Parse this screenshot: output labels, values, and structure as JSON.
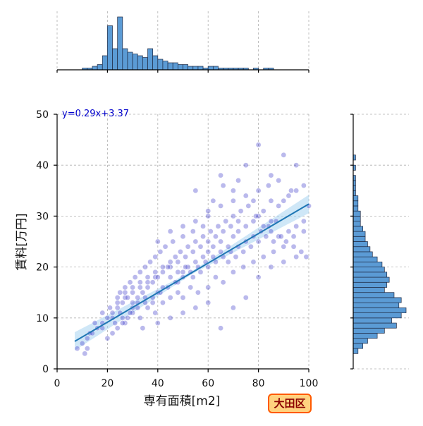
{
  "chart_data": {
    "type": "scatter",
    "xlabel": "専有面積[m2]",
    "ylabel": "賃料[万円]",
    "xlim": [
      0,
      100
    ],
    "ylim": [
      0,
      50
    ],
    "xticks": [
      0,
      20,
      40,
      60,
      80,
      100
    ],
    "yticks": [
      0,
      10,
      20,
      30,
      40,
      50
    ],
    "grid": true,
    "regression": {
      "label": "y=0.29x+3.37",
      "slope": 0.29,
      "intercept": 3.37,
      "x_range": [
        7,
        100
      ],
      "ci_end_halfwidth": 1.5
    },
    "points": [
      [
        13,
        7
      ],
      [
        18,
        8
      ],
      [
        22,
        10
      ],
      [
        25,
        11
      ],
      [
        27,
        9
      ],
      [
        30,
        12
      ],
      [
        32,
        13
      ],
      [
        35,
        14
      ],
      [
        38,
        13
      ],
      [
        40,
        15
      ],
      [
        42,
        16
      ],
      [
        45,
        18
      ],
      [
        48,
        17
      ],
      [
        50,
        19
      ],
      [
        52,
        20
      ],
      [
        55,
        21
      ],
      [
        58,
        22
      ],
      [
        60,
        23
      ],
      [
        62,
        24
      ],
      [
        65,
        25
      ],
      [
        68,
        24
      ],
      [
        70,
        26
      ],
      [
        72,
        27
      ],
      [
        75,
        28
      ],
      [
        78,
        29
      ],
      [
        80,
        30
      ],
      [
        82,
        31
      ],
      [
        85,
        29
      ],
      [
        88,
        32
      ],
      [
        90,
        33
      ],
      [
        92,
        34
      ],
      [
        95,
        35
      ],
      [
        98,
        36
      ],
      [
        100,
        32
      ],
      [
        60,
        30
      ],
      [
        65,
        38
      ],
      [
        70,
        35
      ],
      [
        75,
        40
      ],
      [
        80,
        44
      ],
      [
        85,
        38
      ],
      [
        90,
        42
      ],
      [
        95,
        40
      ],
      [
        55,
        35
      ],
      [
        62,
        33
      ],
      [
        66,
        36
      ],
      [
        72,
        37
      ],
      [
        78,
        33
      ],
      [
        84,
        36
      ],
      [
        88,
        37
      ],
      [
        93,
        35
      ],
      [
        20,
        6
      ],
      [
        22,
        7
      ],
      [
        24,
        8
      ],
      [
        26,
        9
      ],
      [
        28,
        10
      ],
      [
        30,
        11
      ],
      [
        33,
        10
      ],
      [
        36,
        12
      ],
      [
        39,
        11
      ],
      [
        42,
        13
      ],
      [
        45,
        14
      ],
      [
        48,
        15
      ],
      [
        50,
        14
      ],
      [
        53,
        16
      ],
      [
        56,
        15
      ],
      [
        60,
        16
      ],
      [
        63,
        18
      ],
      [
        66,
        17
      ],
      [
        70,
        19
      ],
      [
        74,
        20
      ],
      [
        78,
        21
      ],
      [
        82,
        22
      ],
      [
        86,
        23
      ],
      [
        90,
        24
      ],
      [
        94,
        26
      ],
      [
        98,
        27
      ],
      [
        15,
        9
      ],
      [
        18,
        11
      ],
      [
        21,
        12
      ],
      [
        24,
        13
      ],
      [
        27,
        14
      ],
      [
        30,
        15
      ],
      [
        33,
        16
      ],
      [
        36,
        17
      ],
      [
        39,
        18
      ],
      [
        42,
        19
      ],
      [
        45,
        20
      ],
      [
        48,
        21
      ],
      [
        51,
        22
      ],
      [
        54,
        23
      ],
      [
        57,
        24
      ],
      [
        60,
        25
      ],
      [
        63,
        26
      ],
      [
        66,
        27
      ],
      [
        69,
        28
      ],
      [
        72,
        29
      ],
      [
        10,
        5
      ],
      [
        12,
        6
      ],
      [
        14,
        7
      ],
      [
        16,
        8
      ],
      [
        18,
        9
      ],
      [
        20,
        10
      ],
      [
        22,
        11
      ],
      [
        24,
        12
      ],
      [
        26,
        13
      ],
      [
        28,
        14
      ],
      [
        30,
        13
      ],
      [
        32,
        14
      ],
      [
        34,
        15
      ],
      [
        36,
        16
      ],
      [
        38,
        17
      ],
      [
        40,
        18
      ],
      [
        44,
        20
      ],
      [
        47,
        22
      ],
      [
        49,
        23
      ],
      [
        52,
        24
      ],
      [
        55,
        25
      ],
      [
        58,
        26
      ],
      [
        61,
        27
      ],
      [
        64,
        28
      ],
      [
        67,
        29
      ],
      [
        70,
        30
      ],
      [
        73,
        31
      ],
      [
        76,
        32
      ],
      [
        79,
        30
      ],
      [
        82,
        28
      ],
      [
        85,
        27
      ],
      [
        88,
        26
      ],
      [
        91,
        25
      ],
      [
        94,
        24
      ],
      [
        97,
        23
      ],
      [
        99,
        22
      ],
      [
        25,
        15
      ],
      [
        27,
        16
      ],
      [
        29,
        17
      ],
      [
        31,
        18
      ],
      [
        33,
        19
      ],
      [
        35,
        20
      ],
      [
        37,
        21
      ],
      [
        39,
        22
      ],
      [
        41,
        23
      ],
      [
        43,
        24
      ],
      [
        46,
        25
      ],
      [
        50,
        26
      ],
      [
        54,
        27
      ],
      [
        58,
        28
      ],
      [
        8,
        4
      ],
      [
        11,
        3
      ],
      [
        12,
        4
      ],
      [
        34,
        8
      ],
      [
        40,
        9
      ],
      [
        45,
        10
      ],
      [
        50,
        11
      ],
      [
        55,
        12
      ],
      [
        60,
        13
      ],
      [
        65,
        8
      ],
      [
        70,
        12
      ],
      [
        75,
        14
      ],
      [
        80,
        18
      ],
      [
        85,
        20
      ],
      [
        90,
        21
      ],
      [
        95,
        22
      ],
      [
        23,
        9
      ],
      [
        26,
        10
      ],
      [
        29,
        11
      ],
      [
        32,
        12
      ],
      [
        35,
        13
      ],
      [
        38,
        14
      ],
      [
        41,
        15
      ],
      [
        44,
        16
      ],
      [
        47,
        17
      ],
      [
        50,
        18
      ],
      [
        53,
        19
      ],
      [
        56,
        20
      ],
      [
        59,
        21
      ],
      [
        62,
        22
      ],
      [
        65,
        23
      ],
      [
        68,
        21
      ],
      [
        71,
        22
      ],
      [
        74,
        23
      ],
      [
        77,
        24
      ],
      [
        80,
        25
      ],
      [
        83,
        26
      ],
      [
        86,
        25
      ],
      [
        89,
        26
      ],
      [
        92,
        27
      ],
      [
        95,
        28
      ],
      [
        98,
        29
      ],
      [
        24,
        14
      ],
      [
        27,
        15
      ],
      [
        30,
        16
      ],
      [
        33,
        17
      ],
      [
        36,
        18
      ],
      [
        39,
        19
      ],
      [
        42,
        20
      ],
      [
        45,
        21
      ],
      [
        48,
        19
      ],
      [
        51,
        20
      ],
      [
        54,
        18
      ],
      [
        57,
        19
      ],
      [
        60,
        20
      ],
      [
        63,
        21
      ],
      [
        66,
        22
      ],
      [
        69,
        23
      ],
      [
        72,
        24
      ],
      [
        75,
        25
      ],
      [
        78,
        26
      ],
      [
        81,
        27
      ],
      [
        84,
        28
      ],
      [
        87,
        29
      ],
      [
        40,
        25
      ],
      [
        45,
        27
      ],
      [
        50,
        28
      ],
      [
        55,
        29
      ],
      [
        60,
        31
      ],
      [
        65,
        32
      ],
      [
        70,
        33
      ],
      [
        75,
        34
      ],
      [
        80,
        35
      ],
      [
        85,
        33
      ]
    ],
    "hist_x": {
      "bin_start": 10,
      "bin_width": 2,
      "counts": [
        1,
        1,
        2,
        3,
        8,
        25,
        12,
        30,
        12,
        10,
        9,
        8,
        7,
        12,
        8,
        6,
        5,
        4,
        4,
        3,
        3,
        2,
        2,
        2,
        1,
        2,
        2,
        1,
        1,
        1,
        1,
        1,
        1,
        0,
        1,
        0,
        1,
        1,
        0,
        0,
        0,
        0,
        0,
        0,
        0
      ]
    },
    "hist_y": {
      "bin_start": 3,
      "bin_width": 1,
      "counts": [
        2,
        4,
        6,
        10,
        13,
        18,
        16,
        20,
        22,
        19,
        20,
        17,
        13,
        14,
        15,
        14,
        13,
        12,
        10,
        8,
        7,
        6,
        5,
        5,
        4,
        3,
        3,
        3,
        2,
        2,
        2,
        1,
        1,
        1,
        1,
        0,
        1,
        0,
        1,
        0,
        0,
        0,
        0,
        0,
        0,
        0,
        0
      ]
    }
  },
  "badge": {
    "label": "大田区"
  }
}
